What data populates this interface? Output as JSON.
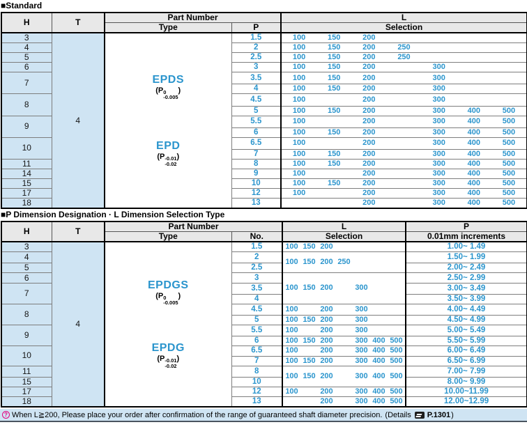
{
  "colors": {
    "accent_blue": "#2b95cd",
    "cell_blue_bg": "#cfe4f3",
    "header_gray_bg": "#e8e8e8",
    "note_pink": "#e5007e"
  },
  "standard_table": {
    "title": "■Standard",
    "headers": {
      "h": "H",
      "t": "T",
      "part_number": "Part Number",
      "type": "Type",
      "p": "P",
      "l": "L",
      "selection": "Selection"
    },
    "t_value": "4",
    "types": [
      {
        "name": "EPDS",
        "tol": {
          "base": "(P",
          "sup": "0",
          "sub": "-0.005",
          "close": ")"
        }
      },
      {
        "name": "EPD",
        "tol": {
          "base": "(P",
          "sup": "-0.01",
          "sub": "-0.02",
          "close": ")"
        }
      }
    ],
    "l_slots": [
      "100",
      "150",
      "200",
      "250",
      "300",
      "400",
      "500"
    ],
    "rows": [
      {
        "h": "3",
        "hspan": 1,
        "p": "1.5",
        "l": [
          "100",
          "150",
          "200",
          "",
          "",
          "",
          ""
        ]
      },
      {
        "h": "4",
        "hspan": 1,
        "p": "2",
        "l": [
          "100",
          "150",
          "200",
          "250",
          "",
          "",
          ""
        ]
      },
      {
        "h": "5",
        "hspan": 1,
        "p": "2.5",
        "l": [
          "100",
          "150",
          "200",
          "250",
          "",
          "",
          ""
        ]
      },
      {
        "h": "6",
        "hspan": 1,
        "p": "3",
        "l": [
          "100",
          "150",
          "200",
          "",
          "300",
          "",
          ""
        ]
      },
      {
        "h": "7",
        "hspan": 2,
        "p": "3.5",
        "l": [
          "100",
          "150",
          "200",
          "",
          "300",
          "",
          ""
        ]
      },
      {
        "h": null,
        "p": "4",
        "l": [
          "100",
          "150",
          "200",
          "",
          "300",
          "",
          ""
        ]
      },
      {
        "h": "8",
        "hspan": 2,
        "p": "4.5",
        "l": [
          "100",
          "",
          "200",
          "",
          "300",
          "",
          ""
        ]
      },
      {
        "h": null,
        "p": "5",
        "l": [
          "100",
          "150",
          "200",
          "",
          "300",
          "400",
          "500"
        ]
      },
      {
        "h": "9",
        "hspan": 2,
        "p": "5.5",
        "l": [
          "100",
          "",
          "200",
          "",
          "300",
          "400",
          "500"
        ]
      },
      {
        "h": null,
        "p": "6",
        "l": [
          "100",
          "150",
          "200",
          "",
          "300",
          "400",
          "500"
        ]
      },
      {
        "h": "10",
        "hspan": 2,
        "p": "6.5",
        "l": [
          "100",
          "",
          "200",
          "",
          "300",
          "400",
          "500"
        ]
      },
      {
        "h": null,
        "p": "7",
        "l": [
          "100",
          "150",
          "200",
          "",
          "300",
          "400",
          "500"
        ]
      },
      {
        "h": "11",
        "hspan": 1,
        "p": "8",
        "l": [
          "100",
          "150",
          "200",
          "",
          "300",
          "400",
          "500"
        ]
      },
      {
        "h": "14",
        "hspan": 1,
        "p": "9",
        "l": [
          "100",
          "",
          "200",
          "",
          "300",
          "400",
          "500"
        ]
      },
      {
        "h": "15",
        "hspan": 1,
        "p": "10",
        "l": [
          "100",
          "150",
          "200",
          "",
          "300",
          "400",
          "500"
        ]
      },
      {
        "h": "17",
        "hspan": 1,
        "p": "12",
        "l": [
          "100",
          "",
          "200",
          "",
          "300",
          "400",
          "500"
        ]
      },
      {
        "h": "18",
        "hspan": 1,
        "p": "13",
        "l": [
          "",
          "",
          "200",
          "",
          "300",
          "400",
          "500"
        ]
      }
    ]
  },
  "designation_table": {
    "title": "■P Dimension Designation · L Dimension Selection Type",
    "headers": {
      "h": "H",
      "t": "T",
      "part_number": "Part Number",
      "type": "Type",
      "no": "No.",
      "l": "L",
      "selection": "Selection",
      "p": "P",
      "p_sub": "0.01mm increments"
    },
    "t_value": "4",
    "types": [
      {
        "name": "EPDGS",
        "tol": {
          "base": "(P",
          "sup": "0",
          "sub": "-0.005",
          "close": ")"
        }
      },
      {
        "name": "EPDG",
        "tol": {
          "base": "(P",
          "sup": "-0.01",
          "sub": "-0.02",
          "close": ")"
        }
      }
    ],
    "l_slots": [
      "100",
      "150",
      "200",
      "250",
      "300",
      "400",
      "500"
    ],
    "rows": [
      {
        "h": "3",
        "hspan": 1,
        "no": "1.5",
        "lspan": 1,
        "l": [
          "100",
          "150",
          "200",
          "",
          "",
          "",
          ""
        ],
        "p_range": "1.00~ 1.49"
      },
      {
        "h": "4",
        "hspan": 1,
        "no": "2",
        "lspan": 2,
        "l": [
          "100",
          "150",
          "200",
          "250",
          "",
          "",
          ""
        ],
        "p_range": "1.50~ 1.99"
      },
      {
        "h": "5",
        "hspan": 1,
        "no": "2.5",
        "p_range": "2.00~ 2.49"
      },
      {
        "h": "6",
        "hspan": 1,
        "no": "3",
        "lspan": 3,
        "l": [
          "100",
          "150",
          "200",
          "",
          "300",
          "",
          ""
        ],
        "p_range": "2.50~ 2.99"
      },
      {
        "h": "7",
        "hspan": 2,
        "no": "3.5",
        "p_range": "3.00~ 3.49"
      },
      {
        "h": null,
        "no": "4",
        "p_range": "3.50~ 3.99"
      },
      {
        "h": "8",
        "hspan": 2,
        "no": "4.5",
        "lspan": 1,
        "l": [
          "100",
          "",
          "200",
          "",
          "300",
          "",
          ""
        ],
        "p_range": "4.00~ 4.49"
      },
      {
        "h": null,
        "no": "5",
        "lspan": 1,
        "l": [
          "100",
          "150",
          "200",
          "",
          "300",
          "",
          ""
        ],
        "p_range": "4.50~ 4.99"
      },
      {
        "h": "9",
        "hspan": 2,
        "no": "5.5",
        "lspan": 1,
        "l": [
          "100",
          "",
          "200",
          "",
          "300",
          "",
          ""
        ],
        "p_range": "5.00~ 5.49"
      },
      {
        "h": null,
        "no": "6",
        "lspan": 1,
        "l": [
          "100",
          "150",
          "200",
          "",
          "300",
          "400",
          "500"
        ],
        "p_range": "5.50~ 5.99"
      },
      {
        "h": "10",
        "hspan": 2,
        "no": "6.5",
        "lspan": 1,
        "l": [
          "100",
          "",
          "200",
          "",
          "300",
          "400",
          "500"
        ],
        "p_range": "6.00~ 6.49"
      },
      {
        "h": null,
        "no": "7",
        "lspan": 1,
        "l": [
          "100",
          "150",
          "200",
          "",
          "300",
          "400",
          "500"
        ],
        "p_range": "6.50~ 6.99"
      },
      {
        "h": "11",
        "hspan": 1,
        "no": "8",
        "lspan": 2,
        "l": [
          "100",
          "150",
          "200",
          "",
          "300",
          "400",
          "500"
        ],
        "p_range": "7.00~ 7.99"
      },
      {
        "h": "15",
        "hspan": 1,
        "no": "10",
        "p_range": "8.00~ 9.99"
      },
      {
        "h": "17",
        "hspan": 1,
        "no": "12",
        "lspan": 1,
        "l": [
          "100",
          "",
          "200",
          "",
          "300",
          "400",
          "500"
        ],
        "p_range": "10.00~11.99"
      },
      {
        "h": "18",
        "hspan": 1,
        "no": "13",
        "lspan": 1,
        "l": [
          "",
          "",
          "200",
          "",
          "300",
          "400",
          "500"
        ],
        "p_range": "12.00~12.99"
      }
    ]
  },
  "footer": {
    "icon_glyph": "?",
    "text": "When L≧200, Please place your order after confirmation of the range of guaranteed shaft diameter precision.",
    "details_prefix": "(Details",
    "page_ref": "P.1301",
    "details_suffix": ")"
  }
}
